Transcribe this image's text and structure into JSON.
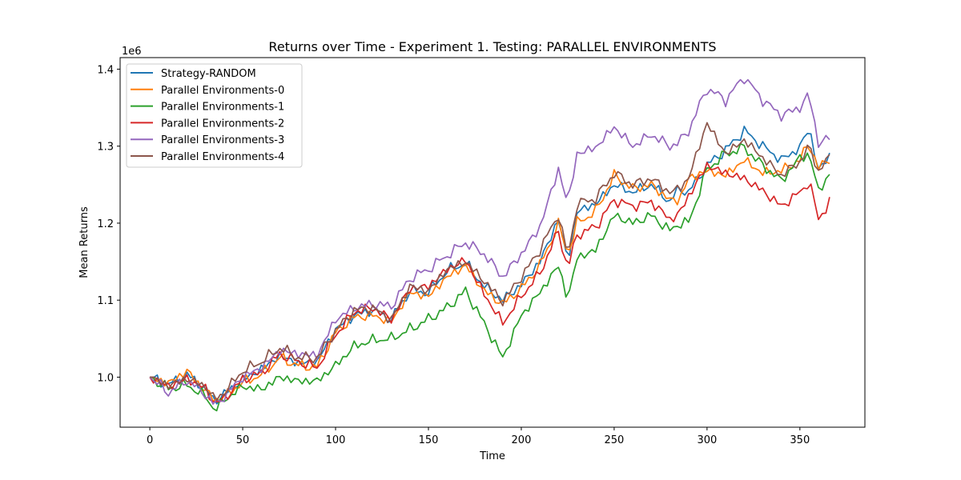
{
  "chart_data": {
    "type": "line",
    "title": "Returns over Time - Experiment 1. Testing: PARALLEL ENVIRONMENTS",
    "xlabel": "Time",
    "ylabel": "Mean Returns",
    "y_offset_label": "1e6",
    "xlim": [
      -16,
      385
    ],
    "ylim": [
      935000,
      1415000
    ],
    "xticks": [
      0,
      50,
      100,
      150,
      200,
      250,
      300,
      350
    ],
    "yticks": [
      1000000,
      1100000,
      1200000,
      1300000,
      1400000
    ],
    "ytick_labels": [
      "1.0",
      "1.1",
      "1.2",
      "1.3",
      "1.4"
    ],
    "legend_position": "upper-left",
    "grid": false,
    "x": [
      0,
      10,
      20,
      30,
      35,
      40,
      50,
      60,
      70,
      80,
      90,
      100,
      110,
      120,
      130,
      140,
      150,
      160,
      170,
      180,
      190,
      200,
      210,
      220,
      225,
      230,
      240,
      250,
      260,
      270,
      280,
      285,
      290,
      300,
      310,
      320,
      330,
      340,
      350,
      355,
      360,
      366
    ],
    "series": [
      {
        "name": "Strategy-RANDOM",
        "color": "#1f77b4",
        "values": [
          1000000,
          990000,
          1003000,
          985000,
          968000,
          978000,
          997000,
          1010000,
          1028000,
          1018000,
          1020000,
          1062000,
          1080000,
          1087000,
          1075000,
          1112000,
          1110000,
          1138000,
          1148000,
          1118000,
          1100000,
          1120000,
          1150000,
          1205000,
          1150000,
          1215000,
          1225000,
          1250000,
          1240000,
          1250000,
          1228000,
          1245000,
          1240000,
          1275000,
          1295000,
          1320000,
          1300000,
          1282000,
          1298000,
          1325000,
          1268000,
          1288000
        ]
      },
      {
        "name": "Parallel Environments-0",
        "color": "#ff7f0e",
        "values": [
          1000000,
          992000,
          1008000,
          982000,
          970000,
          975000,
          993000,
          1003000,
          1025000,
          1015000,
          1013000,
          1058000,
          1078000,
          1080000,
          1072000,
          1110000,
          1105000,
          1130000,
          1145000,
          1112000,
          1095000,
          1115000,
          1145000,
          1198000,
          1160000,
          1200000,
          1215000,
          1262000,
          1245000,
          1250000,
          1230000,
          1230000,
          1258000,
          1268000,
          1262000,
          1282000,
          1265000,
          1268000,
          1282000,
          1305000,
          1270000,
          1285000
        ]
      },
      {
        "name": "Parallel Environments-1",
        "color": "#2ca02c",
        "values": [
          1000000,
          985000,
          990000,
          975000,
          957000,
          970000,
          988000,
          984000,
          1000000,
          995000,
          995000,
          1015000,
          1040000,
          1048000,
          1050000,
          1062000,
          1075000,
          1090000,
          1112000,
          1070000,
          1025000,
          1080000,
          1110000,
          1145000,
          1100000,
          1155000,
          1165000,
          1210000,
          1200000,
          1210000,
          1190000,
          1200000,
          1200000,
          1270000,
          1290000,
          1298000,
          1275000,
          1255000,
          1285000,
          1290000,
          1242000,
          1263000
        ]
      },
      {
        "name": "Parallel Environments-2",
        "color": "#d62728",
        "values": [
          1000000,
          988000,
          998000,
          985000,
          965000,
          972000,
          997000,
          1005000,
          1030000,
          1020000,
          1012000,
          1055000,
          1085000,
          1090000,
          1075000,
          1115000,
          1118000,
          1140000,
          1152000,
          1108000,
          1070000,
          1105000,
          1135000,
          1190000,
          1140000,
          1185000,
          1195000,
          1230000,
          1222000,
          1228000,
          1205000,
          1212000,
          1235000,
          1275000,
          1265000,
          1258000,
          1242000,
          1222000,
          1240000,
          1255000,
          1205000,
          1228000
        ]
      },
      {
        "name": "Parallel Environments-3",
        "color": "#9467bd",
        "values": [
          1000000,
          980000,
          996000,
          978000,
          963000,
          975000,
          1000000,
          1012000,
          1035000,
          1030000,
          1028000,
          1075000,
          1090000,
          1095000,
          1092000,
          1128000,
          1140000,
          1158000,
          1175000,
          1160000,
          1130000,
          1160000,
          1195000,
          1270000,
          1225000,
          1290000,
          1298000,
          1325000,
          1300000,
          1315000,
          1300000,
          1305000,
          1320000,
          1375000,
          1360000,
          1390000,
          1360000,
          1340000,
          1350000,
          1368000,
          1303000,
          1312000
        ]
      },
      {
        "name": "Parallel Environments-4",
        "color": "#8c564b",
        "values": [
          1000000,
          989000,
          998000,
          988000,
          970000,
          980000,
          1008000,
          1020000,
          1038000,
          1025000,
          1025000,
          1060000,
          1087000,
          1090000,
          1075000,
          1118000,
          1112000,
          1140000,
          1150000,
          1125000,
          1098000,
          1130000,
          1165000,
          1212000,
          1155000,
          1225000,
          1232000,
          1265000,
          1250000,
          1258000,
          1240000,
          1245000,
          1258000,
          1330000,
          1290000,
          1308000,
          1285000,
          1262000,
          1280000,
          1300000,
          1268000,
          1285000
        ]
      }
    ]
  }
}
